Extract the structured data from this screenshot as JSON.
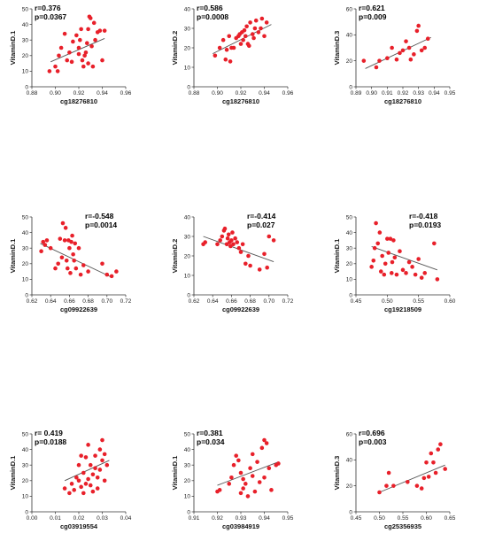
{
  "chart_data": [
    {
      "type": "scatter",
      "stat_r": "r=0.376",
      "stat_p": "p=0.0367",
      "xlabel": "cg18276810",
      "ylabel": "VitaminD.1",
      "xlim": [
        0.88,
        0.96
      ],
      "ylim": [
        0,
        50
      ],
      "xticks": [
        "0.88",
        "0.90",
        "0.92",
        "0.94",
        "0.96"
      ],
      "yticks": [
        "0",
        "10",
        "20",
        "30",
        "40",
        "50"
      ],
      "fit": [
        [
          0.896,
          16
        ],
        [
          0.942,
          31
        ]
      ],
      "points": [
        [
          0.895,
          10
        ],
        [
          0.9,
          13
        ],
        [
          0.902,
          10
        ],
        [
          0.903,
          20
        ],
        [
          0.905,
          25
        ],
        [
          0.908,
          34
        ],
        [
          0.91,
          17
        ],
        [
          0.912,
          22
        ],
        [
          0.914,
          16
        ],
        [
          0.915,
          29
        ],
        [
          0.918,
          33
        ],
        [
          0.92,
          21
        ],
        [
          0.92,
          25
        ],
        [
          0.921,
          30
        ],
        [
          0.922,
          37
        ],
        [
          0.923,
          17
        ],
        [
          0.924,
          13
        ],
        [
          0.925,
          20
        ],
        [
          0.926,
          22
        ],
        [
          0.927,
          28
        ],
        [
          0.928,
          15
        ],
        [
          0.928,
          37
        ],
        [
          0.929,
          45
        ],
        [
          0.93,
          44
        ],
        [
          0.931,
          26
        ],
        [
          0.932,
          13
        ],
        [
          0.933,
          41
        ],
        [
          0.934,
          30
        ],
        [
          0.936,
          35
        ],
        [
          0.938,
          36
        ],
        [
          0.94,
          17
        ],
        [
          0.942,
          36
        ]
      ]
    },
    {
      "type": "scatter",
      "stat_r": "r=0.586",
      "stat_p": "p=0.0008",
      "xlabel": "cg18276810",
      "ylabel": "VitaminD.2",
      "xlim": [
        0.88,
        0.96
      ],
      "ylim": [
        0,
        40
      ],
      "xticks": [
        "0.88",
        "0.90",
        "0.92",
        "0.94",
        "0.96"
      ],
      "yticks": [
        "0",
        "10",
        "20",
        "30",
        "40"
      ],
      "fit": [
        [
          0.896,
          17
        ],
        [
          0.946,
          32
        ]
      ],
      "points": [
        [
          0.898,
          16
        ],
        [
          0.902,
          20
        ],
        [
          0.905,
          24
        ],
        [
          0.907,
          14
        ],
        [
          0.908,
          19
        ],
        [
          0.91,
          26
        ],
        [
          0.911,
          13
        ],
        [
          0.912,
          20
        ],
        [
          0.914,
          20
        ],
        [
          0.916,
          25
        ],
        [
          0.918,
          26
        ],
        [
          0.919,
          27
        ],
        [
          0.92,
          22
        ],
        [
          0.921,
          28
        ],
        [
          0.922,
          24
        ],
        [
          0.923,
          29
        ],
        [
          0.924,
          26
        ],
        [
          0.925,
          31
        ],
        [
          0.926,
          22
        ],
        [
          0.927,
          21
        ],
        [
          0.928,
          33
        ],
        [
          0.93,
          27
        ],
        [
          0.931,
          25
        ],
        [
          0.932,
          30
        ],
        [
          0.933,
          34
        ],
        [
          0.935,
          28
        ],
        [
          0.937,
          30
        ],
        [
          0.938,
          35
        ],
        [
          0.94,
          26
        ],
        [
          0.942,
          33
        ]
      ]
    },
    {
      "type": "scatter",
      "stat_r": "r=0.621",
      "stat_p": "p=0.009",
      "xlabel": "cg18276810",
      "ylabel": "VitaminD.3",
      "xlim": [
        0.89,
        0.95
      ],
      "ylim": [
        0,
        60
      ],
      "xticks": [
        "0.89",
        "0.90",
        "0.91",
        "0.92",
        "0.93",
        "0.94",
        "0.95"
      ],
      "yticks": [
        "0",
        "20",
        "40",
        "60"
      ],
      "fit": [
        [
          0.896,
          14
        ],
        [
          0.938,
          38
        ]
      ],
      "points": [
        [
          0.895,
          20
        ],
        [
          0.903,
          15
        ],
        [
          0.905,
          20
        ],
        [
          0.91,
          22
        ],
        [
          0.913,
          30
        ],
        [
          0.916,
          21
        ],
        [
          0.918,
          26
        ],
        [
          0.92,
          28
        ],
        [
          0.922,
          35
        ],
        [
          0.924,
          30
        ],
        [
          0.925,
          21
        ],
        [
          0.927,
          25
        ],
        [
          0.929,
          43
        ],
        [
          0.93,
          47
        ],
        [
          0.932,
          28
        ],
        [
          0.934,
          30
        ],
        [
          0.936,
          37
        ]
      ]
    },
    {
      "type": "scatter",
      "stat_r": "r=-0.548",
      "stat_p": "p=0.0014",
      "xlabel": "cg09922639",
      "ylabel": "VitaminD.1",
      "xlim": [
        0.62,
        0.72
      ],
      "ylim": [
        0,
        50
      ],
      "xticks": [
        "0.62",
        "0.64",
        "0.66",
        "0.68",
        "0.70",
        "0.72"
      ],
      "yticks": [
        "0",
        "10",
        "20",
        "30",
        "40",
        "50"
      ],
      "fit": [
        [
          0.629,
          33
        ],
        [
          0.706,
          11
        ]
      ],
      "points": [
        [
          0.63,
          28
        ],
        [
          0.632,
          34
        ],
        [
          0.634,
          32
        ],
        [
          0.636,
          35
        ],
        [
          0.64,
          30
        ],
        [
          0.645,
          17
        ],
        [
          0.648,
          20
        ],
        [
          0.65,
          36
        ],
        [
          0.652,
          24
        ],
        [
          0.653,
          46
        ],
        [
          0.655,
          35
        ],
        [
          0.656,
          43
        ],
        [
          0.657,
          22
        ],
        [
          0.658,
          17
        ],
        [
          0.659,
          35
        ],
        [
          0.66,
          30
        ],
        [
          0.661,
          14
        ],
        [
          0.662,
          34
        ],
        [
          0.663,
          38
        ],
        [
          0.664,
          26
        ],
        [
          0.665,
          22
        ],
        [
          0.666,
          33
        ],
        [
          0.667,
          17
        ],
        [
          0.67,
          30
        ],
        [
          0.672,
          13
        ],
        [
          0.675,
          19
        ],
        [
          0.68,
          15
        ],
        [
          0.695,
          20
        ],
        [
          0.7,
          13
        ],
        [
          0.705,
          12
        ],
        [
          0.71,
          15
        ]
      ]
    },
    {
      "type": "scatter",
      "stat_r": "r=-0.414",
      "stat_p": "p=0.027",
      "xlabel": "cg09922639",
      "ylabel": "VitaminD.2",
      "xlim": [
        0.62,
        0.72
      ],
      "ylim": [
        0,
        40
      ],
      "xticks": [
        "0.62",
        "0.64",
        "0.66",
        "0.68",
        "0.70",
        "0.72"
      ],
      "yticks": [
        "0",
        "10",
        "20",
        "30",
        "40"
      ],
      "fit": [
        [
          0.63,
          30
        ],
        [
          0.705,
          17
        ]
      ],
      "points": [
        [
          0.63,
          26
        ],
        [
          0.632,
          27
        ],
        [
          0.645,
          26
        ],
        [
          0.648,
          28
        ],
        [
          0.65,
          30
        ],
        [
          0.652,
          33
        ],
        [
          0.653,
          34
        ],
        [
          0.655,
          26
        ],
        [
          0.656,
          29
        ],
        [
          0.657,
          31
        ],
        [
          0.658,
          27
        ],
        [
          0.659,
          25
        ],
        [
          0.66,
          28
        ],
        [
          0.661,
          32
        ],
        [
          0.662,
          26
        ],
        [
          0.664,
          29
        ],
        [
          0.666,
          27
        ],
        [
          0.668,
          24
        ],
        [
          0.67,
          22
        ],
        [
          0.672,
          26
        ],
        [
          0.675,
          16
        ],
        [
          0.678,
          20
        ],
        [
          0.68,
          15
        ],
        [
          0.69,
          13
        ],
        [
          0.695,
          21
        ],
        [
          0.698,
          14
        ],
        [
          0.7,
          30
        ],
        [
          0.705,
          28
        ]
      ]
    },
    {
      "type": "scatter",
      "stat_r": "r=-0.418",
      "stat_p": "p=0.0193",
      "xlabel": "cg19218509",
      "ylabel": "VitaminD.1",
      "xlim": [
        0.45,
        0.6
      ],
      "ylim": [
        0,
        50
      ],
      "xticks": [
        "0.45",
        "0.50",
        "0.55",
        "0.60"
      ],
      "yticks": [
        "0",
        "10",
        "20",
        "30",
        "40",
        "50"
      ],
      "fit": [
        [
          0.475,
          31
        ],
        [
          0.58,
          16
        ]
      ],
      "points": [
        [
          0.475,
          18
        ],
        [
          0.478,
          22
        ],
        [
          0.48,
          30
        ],
        [
          0.482,
          46
        ],
        [
          0.485,
          33
        ],
        [
          0.488,
          40
        ],
        [
          0.49,
          15
        ],
        [
          0.492,
          25
        ],
        [
          0.495,
          13
        ],
        [
          0.497,
          20
        ],
        [
          0.5,
          36
        ],
        [
          0.502,
          27
        ],
        [
          0.505,
          36
        ],
        [
          0.507,
          14
        ],
        [
          0.508,
          21
        ],
        [
          0.51,
          35
        ],
        [
          0.512,
          24
        ],
        [
          0.515,
          13
        ],
        [
          0.52,
          28
        ],
        [
          0.525,
          16
        ],
        [
          0.53,
          14
        ],
        [
          0.535,
          21
        ],
        [
          0.54,
          18
        ],
        [
          0.545,
          13
        ],
        [
          0.55,
          23
        ],
        [
          0.555,
          11
        ],
        [
          0.56,
          14
        ],
        [
          0.575,
          33
        ],
        [
          0.58,
          10
        ]
      ]
    },
    {
      "type": "scatter",
      "stat_r": "r= 0.419",
      "stat_p": "p=0.0188",
      "xlabel": "cg03919554",
      "ylabel": "VitaminD.1",
      "xlim": [
        0.0,
        0.04
      ],
      "ylim": [
        0,
        50
      ],
      "xticks": [
        "0.00",
        "0.01",
        "0.02",
        "0.03",
        "0.04"
      ],
      "yticks": [
        "0",
        "10",
        "20",
        "30",
        "40",
        "50"
      ],
      "fit": [
        [
          0.014,
          20
        ],
        [
          0.033,
          33
        ]
      ],
      "points": [
        [
          0.014,
          15
        ],
        [
          0.016,
          12
        ],
        [
          0.017,
          18
        ],
        [
          0.018,
          14
        ],
        [
          0.019,
          22
        ],
        [
          0.02,
          20
        ],
        [
          0.02,
          30
        ],
        [
          0.021,
          16
        ],
        [
          0.021,
          36
        ],
        [
          0.022,
          12
        ],
        [
          0.022,
          25
        ],
        [
          0.023,
          18
        ],
        [
          0.023,
          35
        ],
        [
          0.024,
          21
        ],
        [
          0.024,
          43
        ],
        [
          0.025,
          17
        ],
        [
          0.025,
          30
        ],
        [
          0.026,
          13
        ],
        [
          0.026,
          24
        ],
        [
          0.027,
          36
        ],
        [
          0.027,
          28
        ],
        [
          0.028,
          15
        ],
        [
          0.028,
          22
        ],
        [
          0.029,
          40
        ],
        [
          0.029,
          27
        ],
        [
          0.03,
          46
        ],
        [
          0.03,
          33
        ],
        [
          0.031,
          20
        ],
        [
          0.031,
          37
        ],
        [
          0.032,
          30
        ]
      ]
    },
    {
      "type": "scatter",
      "stat_r": "r=0.381",
      "stat_p": "p=0.034",
      "xlabel": "cg03984919",
      "ylabel": "VitaminD.1",
      "xlim": [
        0.91,
        0.95
      ],
      "ylim": [
        0,
        50
      ],
      "xticks": [
        "0.91",
        "0.92",
        "0.93",
        "0.94",
        "0.95"
      ],
      "yticks": [
        "0",
        "10",
        "20",
        "30",
        "40",
        "50"
      ],
      "fit": [
        [
          0.92,
          17
        ],
        [
          0.946,
          32
        ]
      ],
      "points": [
        [
          0.92,
          13
        ],
        [
          0.921,
          14
        ],
        [
          0.925,
          18
        ],
        [
          0.926,
          22
        ],
        [
          0.927,
          30
        ],
        [
          0.928,
          36
        ],
        [
          0.929,
          33
        ],
        [
          0.93,
          12
        ],
        [
          0.93,
          25
        ],
        [
          0.931,
          21
        ],
        [
          0.931,
          15
        ],
        [
          0.932,
          18
        ],
        [
          0.933,
          10
        ],
        [
          0.934,
          28
        ],
        [
          0.935,
          37
        ],
        [
          0.935,
          23
        ],
        [
          0.936,
          13
        ],
        [
          0.937,
          32
        ],
        [
          0.938,
          19
        ],
        [
          0.939,
          41
        ],
        [
          0.94,
          46
        ],
        [
          0.94,
          22
        ],
        [
          0.941,
          44
        ],
        [
          0.942,
          28
        ],
        [
          0.943,
          14
        ],
        [
          0.945,
          30
        ],
        [
          0.946,
          31
        ]
      ]
    },
    {
      "type": "scatter",
      "stat_r": "r=0.696",
      "stat_p": "p=0.003",
      "xlabel": "cg25356935",
      "ylabel": "VitaminD.3",
      "xlim": [
        0.45,
        0.65
      ],
      "ylim": [
        0,
        60
      ],
      "xticks": [
        "0.45",
        "0.50",
        "0.55",
        "0.60",
        "0.65"
      ],
      "yticks": [
        "0",
        "20",
        "40",
        "60"
      ],
      "fit": [
        [
          0.5,
          15
        ],
        [
          0.64,
          36
        ]
      ],
      "points": [
        [
          0.5,
          15
        ],
        [
          0.515,
          20
        ],
        [
          0.52,
          30
        ],
        [
          0.53,
          20
        ],
        [
          0.56,
          23
        ],
        [
          0.58,
          20
        ],
        [
          0.59,
          18
        ],
        [
          0.595,
          26
        ],
        [
          0.6,
          38
        ],
        [
          0.605,
          27
        ],
        [
          0.61,
          45
        ],
        [
          0.615,
          38
        ],
        [
          0.62,
          30
        ],
        [
          0.625,
          48
        ],
        [
          0.63,
          52
        ],
        [
          0.64,
          33
        ]
      ]
    }
  ]
}
